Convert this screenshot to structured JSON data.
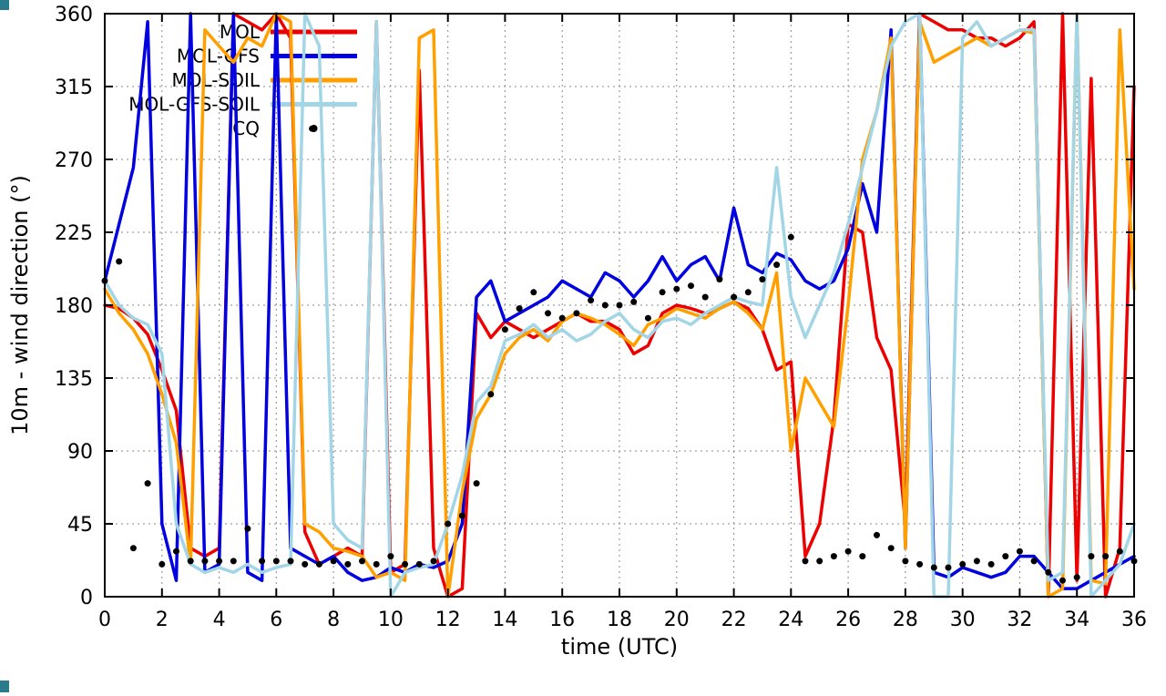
{
  "page": {
    "background": "#ffffff"
  },
  "chart_data": {
    "type": "line",
    "title": "",
    "xlabel": "time (UTC)",
    "ylabel": "10m - wind direction (°)",
    "xlim": [
      0,
      36
    ],
    "ylim": [
      0,
      360
    ],
    "xticks": [
      0,
      2,
      4,
      6,
      8,
      10,
      12,
      14,
      16,
      18,
      20,
      22,
      24,
      26,
      28,
      30,
      32,
      34,
      36
    ],
    "yticks": [
      0,
      45,
      90,
      135,
      180,
      225,
      270,
      315,
      360
    ],
    "grid": true,
    "legend_position": "top-left-inside",
    "legend_entries": [
      "MOL",
      "MOL-GFS",
      "MOL-SOIL",
      "MOL-GFS-SOIL",
      "CQ"
    ],
    "series": [
      {
        "name": "MOL",
        "type": "line",
        "color": "#ec0000",
        "x_start": 0,
        "x_step": 0.5,
        "values": [
          180,
          178,
          172,
          162,
          140,
          115,
          30,
          25,
          30,
          360,
          355,
          350,
          360,
          345,
          40,
          20,
          25,
          30,
          25,
          355,
          15,
          20,
          325,
          30,
          0,
          5,
          175,
          160,
          170,
          165,
          160,
          165,
          170,
          175,
          170,
          170,
          165,
          150,
          155,
          175,
          180,
          178,
          175,
          178,
          182,
          178,
          165,
          140,
          145,
          25,
          45,
          110,
          230,
          225,
          160,
          140,
          45,
          360,
          355,
          350,
          350,
          345,
          345,
          340,
          345,
          355,
          0,
          360,
          10,
          320,
          0,
          30,
          315
        ]
      },
      {
        "name": "MOL-GFS",
        "type": "line",
        "color": "#0000e0",
        "x_start": 0,
        "x_step": 0.5,
        "values": [
          195,
          230,
          265,
          355,
          45,
          10,
          360,
          15,
          20,
          360,
          15,
          10,
          360,
          30,
          25,
          20,
          25,
          15,
          10,
          12,
          18,
          15,
          20,
          18,
          22,
          45,
          185,
          195,
          170,
          175,
          180,
          185,
          195,
          190,
          185,
          200,
          195,
          185,
          195,
          210,
          195,
          205,
          210,
          195,
          240,
          205,
          200,
          212,
          208,
          195,
          190,
          195,
          215,
          255,
          225,
          350,
          30,
          360,
          15,
          12,
          18,
          15,
          12,
          15,
          25,
          25,
          15,
          5,
          5,
          10,
          15,
          20,
          25
        ]
      },
      {
        "name": "MOL-SOIL",
        "type": "line",
        "color": "#ffa000",
        "x_start": 0,
        "x_step": 0.5,
        "values": [
          190,
          175,
          165,
          150,
          125,
          95,
          20,
          350,
          340,
          330,
          345,
          340,
          360,
          355,
          45,
          40,
          30,
          28,
          25,
          12,
          15,
          10,
          345,
          350,
          0,
          65,
          110,
          125,
          150,
          160,
          165,
          158,
          170,
          175,
          172,
          168,
          162,
          155,
          168,
          172,
          178,
          175,
          172,
          178,
          182,
          175,
          165,
          200,
          90,
          135,
          120,
          105,
          180,
          270,
          300,
          345,
          30,
          355,
          330,
          335,
          340,
          345,
          340,
          345,
          350,
          348,
          0,
          5,
          360,
          10,
          8,
          350,
          190
        ]
      },
      {
        "name": "MOL-GFS-SOIL",
        "type": "line",
        "color": "#a2d5e6",
        "x_start": 0,
        "x_step": 0.5,
        "values": [
          195,
          180,
          172,
          168,
          150,
          45,
          20,
          15,
          18,
          15,
          20,
          15,
          18,
          20,
          360,
          340,
          45,
          35,
          30,
          355,
          0,
          15,
          18,
          20,
          45,
          75,
          120,
          130,
          158,
          162,
          168,
          160,
          165,
          158,
          162,
          170,
          175,
          165,
          160,
          170,
          172,
          168,
          175,
          180,
          185,
          182,
          180,
          265,
          185,
          160,
          180,
          200,
          230,
          265,
          300,
          340,
          355,
          360,
          0,
          0,
          345,
          355,
          340,
          345,
          350,
          350,
          10,
          15,
          360,
          0,
          10,
          20,
          45
        ]
      },
      {
        "name": "CQ",
        "type": "points",
        "color": "#000000",
        "x": [
          0,
          0.5,
          1,
          1.5,
          2,
          2.5,
          3,
          3.5,
          4,
          4.5,
          5,
          5.5,
          6,
          6.5,
          7,
          7.25,
          7.5,
          8,
          8.5,
          9,
          9.5,
          10,
          10.5,
          11,
          11.5,
          12,
          12.5,
          13,
          13.5,
          14,
          14.5,
          15,
          15.5,
          16,
          16.5,
          17,
          17.5,
          18,
          18.5,
          19,
          19.5,
          20,
          20.5,
          21,
          21.5,
          22,
          22.5,
          23,
          23.5,
          24,
          24.5,
          25,
          25.5,
          26,
          26.5,
          27,
          27.5,
          28,
          28.5,
          29,
          29.5,
          30,
          30.5,
          31,
          31.5,
          32,
          32.5,
          33,
          33.5,
          34,
          34.5,
          35,
          35.5,
          36
        ],
        "y": [
          195,
          207,
          30,
          70,
          20,
          28,
          22,
          22,
          22,
          22,
          42,
          22,
          22,
          22,
          20,
          289,
          20,
          22,
          20,
          22,
          20,
          25,
          20,
          20,
          22,
          45,
          50,
          70,
          125,
          165,
          178,
          188,
          175,
          172,
          175,
          183,
          180,
          180,
          182,
          172,
          188,
          190,
          192,
          185,
          196,
          185,
          188,
          196,
          205,
          222,
          22,
          22,
          25,
          28,
          25,
          38,
          30,
          22,
          20,
          18,
          18,
          20,
          22,
          20,
          25,
          28,
          22,
          15,
          10,
          12,
          25,
          25,
          28,
          22
        ]
      }
    ]
  }
}
